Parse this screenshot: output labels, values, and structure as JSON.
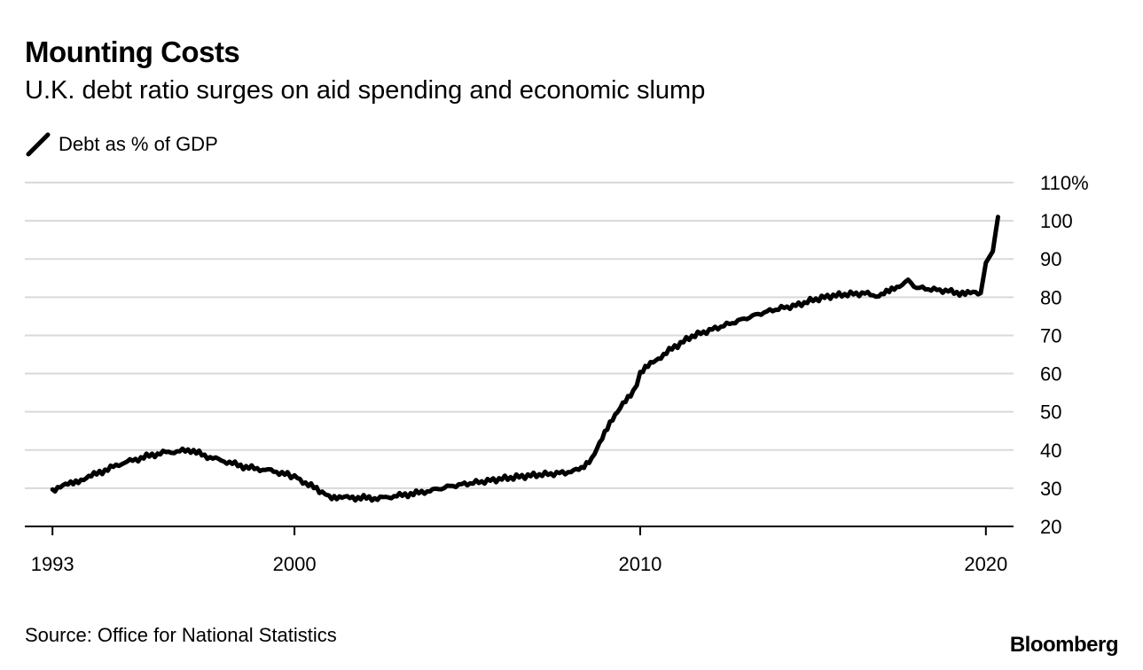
{
  "header": {
    "title": "Mounting Costs",
    "subtitle": "U.K. debt ratio surges on aid spending and economic slump"
  },
  "footer": {
    "source": "Source: Office for National Statistics",
    "brand": "Bloomberg"
  },
  "colors": {
    "line": "#000000",
    "grid": "#d9d9d9",
    "axis": "#000000"
  },
  "chart_data": {
    "type": "line",
    "title": "Mounting Costs",
    "subtitle": "U.K. debt ratio surges on aid spending and economic slump",
    "xlabel": "",
    "ylabel": "",
    "xlim": [
      1992.2,
      2020.8
    ],
    "ylim": [
      20,
      110
    ],
    "y_ticks": [
      20,
      30,
      40,
      50,
      60,
      70,
      80,
      90,
      100,
      110
    ],
    "y_tick_labels": [
      "20",
      "30",
      "40",
      "50",
      "60",
      "70",
      "80",
      "90",
      "100",
      "110%"
    ],
    "x_ticks": [
      1993,
      2000,
      2010,
      2020
    ],
    "x_tick_labels": [
      "1993",
      "2000",
      "2010",
      "2020"
    ],
    "grid": true,
    "legend": "top-left",
    "series": [
      {
        "name": "Debt as % of GDP",
        "x": [
          1993.0,
          1993.3,
          1993.6,
          1993.9,
          1994.2,
          1994.6,
          1995.0,
          1995.4,
          1995.8,
          1996.2,
          1996.6,
          1997.0,
          1997.4,
          1997.8,
          1998.2,
          1998.6,
          1999.0,
          1999.4,
          1999.8,
          2000.0,
          2000.4,
          2000.8,
          2001.0,
          2001.3,
          2001.6,
          2002.0,
          2002.4,
          2002.8,
          2003.2,
          2003.6,
          2004.0,
          2004.5,
          2005.0,
          2005.5,
          2006.0,
          2006.5,
          2007.0,
          2007.5,
          2008.0,
          2008.3,
          2008.6,
          2008.9,
          2009.2,
          2009.5,
          2009.8,
          2010.0,
          2010.3,
          2010.6,
          2011.0,
          2011.5,
          2012.0,
          2012.5,
          2013.0,
          2013.5,
          2014.0,
          2014.5,
          2015.0,
          2015.5,
          2016.0,
          2016.5,
          2016.9,
          2017.2,
          2017.5,
          2017.75,
          2018.0,
          2018.5,
          2019.0,
          2019.4,
          2019.7,
          2019.85,
          2020.0,
          2020.2,
          2020.35
        ],
        "values": [
          29.5,
          30.5,
          31.5,
          32.5,
          33.5,
          35.0,
          36.5,
          37.5,
          38.5,
          39.3,
          39.6,
          40.0,
          38.5,
          37.5,
          36.5,
          35.5,
          35.0,
          34.5,
          33.5,
          33.0,
          31.0,
          29.0,
          28.0,
          27.5,
          27.5,
          27.5,
          27.3,
          27.8,
          28.3,
          28.8,
          29.5,
          30.5,
          31.2,
          31.8,
          32.5,
          33.0,
          33.5,
          33.8,
          34.3,
          35.0,
          38.0,
          43.0,
          48.0,
          52.5,
          55.0,
          60.0,
          62.5,
          64.5,
          67.0,
          69.8,
          71.3,
          72.8,
          74.3,
          75.8,
          77.0,
          77.8,
          79.3,
          80.3,
          80.8,
          81.0,
          80.3,
          81.5,
          83.0,
          84.3,
          82.5,
          82.0,
          81.5,
          80.8,
          81.3,
          81.0,
          89.0,
          92.0,
          101.0
        ]
      }
    ]
  }
}
